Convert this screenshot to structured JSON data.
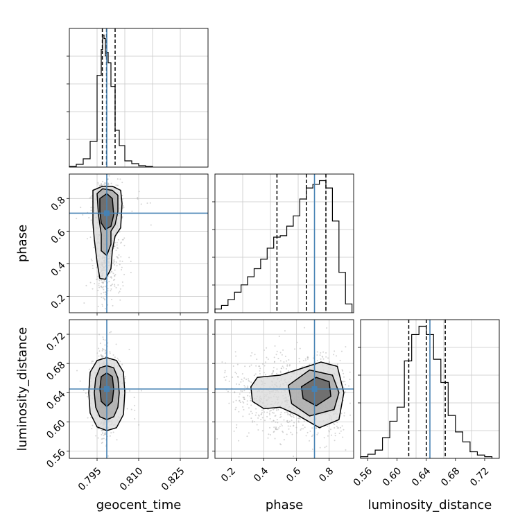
{
  "chart_data": {
    "type": "corner",
    "parameters": [
      "geocent_time",
      "phase",
      "luminosity_distance"
    ],
    "truth": {
      "geocent_time": 0.7985,
      "phase": 0.71,
      "luminosity_distance": 0.645
    },
    "quantiles_marked": {
      "geocent_time": [
        0.7969,
        0.7984,
        0.8015
      ],
      "phase": [
        0.48,
        0.66,
        0.78
      ],
      "luminosity_distance": [
        0.616,
        0.64,
        0.666
      ]
    },
    "grid": true,
    "line_color": "#000000",
    "truth_color": "#4682b4",
    "scatter_color": "#b0b0b0",
    "panels": {
      "hist_geocent_time": {
        "xlim": [
          0.785,
          0.835
        ],
        "edges": [
          0.785,
          0.7875,
          0.79,
          0.7925,
          0.795,
          0.7965,
          0.797,
          0.7975,
          0.798,
          0.7985,
          0.799,
          0.8,
          0.8015,
          0.803,
          0.805,
          0.8075,
          0.81,
          0.8125,
          0.815
        ],
        "counts": [
          1,
          4,
          12,
          37,
          132,
          169,
          190,
          185,
          160,
          165,
          150,
          116,
          53,
          31,
          9,
          5,
          2,
          1
        ]
      },
      "hist_phase": {
        "xlim": [
          0.1,
          0.95
        ],
        "edges": [
          0.1,
          0.14,
          0.18,
          0.22,
          0.26,
          0.3,
          0.34,
          0.38,
          0.42,
          0.46,
          0.5,
          0.54,
          0.58,
          0.62,
          0.66,
          0.7,
          0.74,
          0.78,
          0.82,
          0.86,
          0.9,
          0.94
        ],
        "counts": [
          5,
          10,
          18,
          28,
          38,
          49,
          60,
          73,
          88,
          103,
          105,
          118,
          132,
          155,
          170,
          175,
          180,
          170,
          125,
          55,
          12
        ]
      },
      "hist_luminosity_distance": {
        "xlim": [
          0.55,
          0.74
        ],
        "edges": [
          0.55,
          0.56,
          0.57,
          0.58,
          0.59,
          0.6,
          0.61,
          0.62,
          0.63,
          0.64,
          0.65,
          0.66,
          0.67,
          0.68,
          0.69,
          0.7,
          0.71,
          0.72,
          0.73
        ],
        "counts": [
          2,
          5,
          10,
          25,
          45,
          62,
          118,
          150,
          160,
          150,
          120,
          92,
          52,
          32,
          20,
          8,
          4,
          2
        ]
      },
      "scatter_phase_vs_geocent_time": {
        "xlim": [
          0.785,
          0.835
        ],
        "ylim": [
          0.1,
          0.95
        ],
        "ticks_x": [
          0.795,
          0.81,
          0.825
        ],
        "tick_labels_x": [
          "0.795",
          "0.810",
          "0.825"
        ],
        "ticks_y": [
          0.2,
          0.4,
          0.6,
          0.8
        ],
        "tick_labels_y": [
          "0.2",
          "0.4",
          "0.6",
          "0.8"
        ],
        "contours": [
          [
            [
              0.7935,
              0.85
            ],
            [
              0.797,
              0.875
            ],
            [
              0.8005,
              0.875
            ],
            [
              0.8035,
              0.85
            ],
            [
              0.804,
              0.77
            ],
            [
              0.8035,
              0.62
            ],
            [
              0.8015,
              0.57
            ],
            [
              0.8005,
              0.48
            ],
            [
              0.8,
              0.37
            ],
            [
              0.798,
              0.305
            ],
            [
              0.796,
              0.31
            ],
            [
              0.795,
              0.41
            ],
            [
              0.794,
              0.55
            ],
            [
              0.7935,
              0.65
            ],
            [
              0.7935,
              0.85
            ]
          ],
          [
            [
              0.795,
              0.83
            ],
            [
              0.797,
              0.86
            ],
            [
              0.8005,
              0.85
            ],
            [
              0.8025,
              0.82
            ],
            [
              0.8025,
              0.72
            ],
            [
              0.8015,
              0.64
            ],
            [
              0.8,
              0.6
            ],
            [
              0.8,
              0.52
            ],
            [
              0.7985,
              0.45
            ],
            [
              0.7965,
              0.48
            ],
            [
              0.7965,
              0.58
            ],
            [
              0.7955,
              0.7
            ],
            [
              0.795,
              0.83
            ]
          ],
          [
            [
              0.796,
              0.8
            ],
            [
              0.7985,
              0.83
            ],
            [
              0.8005,
              0.8
            ],
            [
              0.801,
              0.7
            ],
            [
              0.8,
              0.63
            ],
            [
              0.798,
              0.61
            ],
            [
              0.7965,
              0.65
            ],
            [
              0.796,
              0.72
            ],
            [
              0.796,
              0.8
            ]
          ]
        ]
      },
      "scatter_luminosity_distance_vs_geocent_time": {
        "xlim": [
          0.785,
          0.835
        ],
        "ylim": [
          0.55,
          0.74
        ],
        "ticks_x": [
          0.795,
          0.81,
          0.825
        ],
        "tick_labels_x": [
          "0.795",
          "0.810",
          "0.825"
        ],
        "ticks_y": [
          0.56,
          0.6,
          0.64,
          0.68,
          0.72
        ],
        "tick_labels_y": [
          "0.56",
          "0.60",
          "0.64",
          "0.68",
          "0.72"
        ],
        "contours": [
          [
            [
              0.7985,
              0.688
            ],
            [
              0.802,
              0.684
            ],
            [
              0.8045,
              0.668
            ],
            [
              0.805,
              0.64
            ],
            [
              0.8045,
              0.61
            ],
            [
              0.802,
              0.592
            ],
            [
              0.7985,
              0.588
            ],
            [
              0.795,
              0.593
            ],
            [
              0.7925,
              0.612
            ],
            [
              0.792,
              0.64
            ],
            [
              0.7925,
              0.668
            ],
            [
              0.795,
              0.684
            ],
            [
              0.7985,
              0.688
            ]
          ],
          [
            [
              0.7985,
              0.677
            ],
            [
              0.801,
              0.674
            ],
            [
              0.8025,
              0.66
            ],
            [
              0.803,
              0.64
            ],
            [
              0.8025,
              0.62
            ],
            [
              0.801,
              0.607
            ],
            [
              0.7985,
              0.603
            ],
            [
              0.796,
              0.607
            ],
            [
              0.7945,
              0.62
            ],
            [
              0.794,
              0.64
            ],
            [
              0.7945,
              0.66
            ],
            [
              0.796,
              0.674
            ],
            [
              0.7985,
              0.677
            ]
          ],
          [
            [
              0.7985,
              0.667
            ],
            [
              0.8005,
              0.662
            ],
            [
              0.801,
              0.645
            ],
            [
              0.8005,
              0.628
            ],
            [
              0.7985,
              0.621
            ],
            [
              0.7965,
              0.628
            ],
            [
              0.796,
              0.645
            ],
            [
              0.7965,
              0.662
            ],
            [
              0.7985,
              0.667
            ]
          ]
        ]
      },
      "scatter_luminosity_distance_vs_phase": {
        "xlim": [
          0.1,
          0.95
        ],
        "ylim": [
          0.55,
          0.74
        ],
        "ticks_x": [
          0.2,
          0.4,
          0.6,
          0.8
        ],
        "tick_labels_x": [
          "0.2",
          "0.4",
          "0.6",
          "0.8"
        ],
        "ticks_y": [
          0.56,
          0.6,
          0.64,
          0.68,
          0.72
        ],
        "tick_labels_y": [
          "0.56",
          "0.60",
          "0.64",
          "0.68",
          "0.72"
        ],
        "contours": [
          [
            [
              0.36,
              0.661
            ],
            [
              0.5,
              0.664
            ],
            [
              0.6,
              0.671
            ],
            [
              0.75,
              0.682
            ],
            [
              0.85,
              0.676
            ],
            [
              0.89,
              0.64
            ],
            [
              0.86,
              0.603
            ],
            [
              0.74,
              0.592
            ],
            [
              0.6,
              0.61
            ],
            [
              0.5,
              0.62
            ],
            [
              0.4,
              0.618
            ],
            [
              0.33,
              0.628
            ],
            [
              0.32,
              0.648
            ],
            [
              0.36,
              0.661
            ]
          ],
          [
            [
              0.55,
              0.65
            ],
            [
              0.68,
              0.671
            ],
            [
              0.82,
              0.664
            ],
            [
              0.86,
              0.64
            ],
            [
              0.83,
              0.617
            ],
            [
              0.68,
              0.608
            ],
            [
              0.57,
              0.625
            ],
            [
              0.55,
              0.65
            ]
          ],
          [
            [
              0.63,
              0.648
            ],
            [
              0.72,
              0.661
            ],
            [
              0.8,
              0.655
            ],
            [
              0.81,
              0.635
            ],
            [
              0.72,
              0.622
            ],
            [
              0.64,
              0.632
            ],
            [
              0.63,
              0.648
            ]
          ]
        ]
      }
    }
  }
}
